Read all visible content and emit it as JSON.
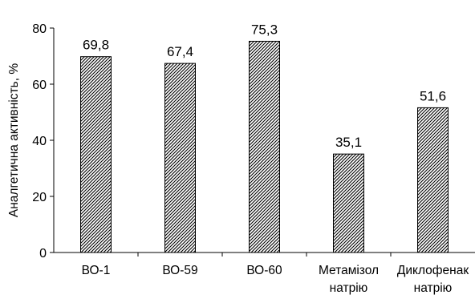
{
  "chart_data": {
    "type": "bar",
    "title": "",
    "xlabel": "",
    "ylabel": "Аналгетична активність, %",
    "ylim": [
      0,
      80
    ],
    "yticks": [
      0,
      20,
      40,
      60,
      80
    ],
    "grid": false,
    "bar_fill": "hatched",
    "bar_color": "#000000",
    "categories": [
      [
        "ВО-1"
      ],
      [
        "ВО-59"
      ],
      [
        "ВО-60"
      ],
      [
        "Метамізол",
        "натрію"
      ],
      [
        "Диклофенак",
        "натрію"
      ]
    ],
    "values": [
      69.8,
      67.4,
      75.3,
      35.1,
      51.6
    ],
    "value_labels": [
      "69,8",
      "67,4",
      "75,3",
      "35,1",
      "51,6"
    ]
  }
}
